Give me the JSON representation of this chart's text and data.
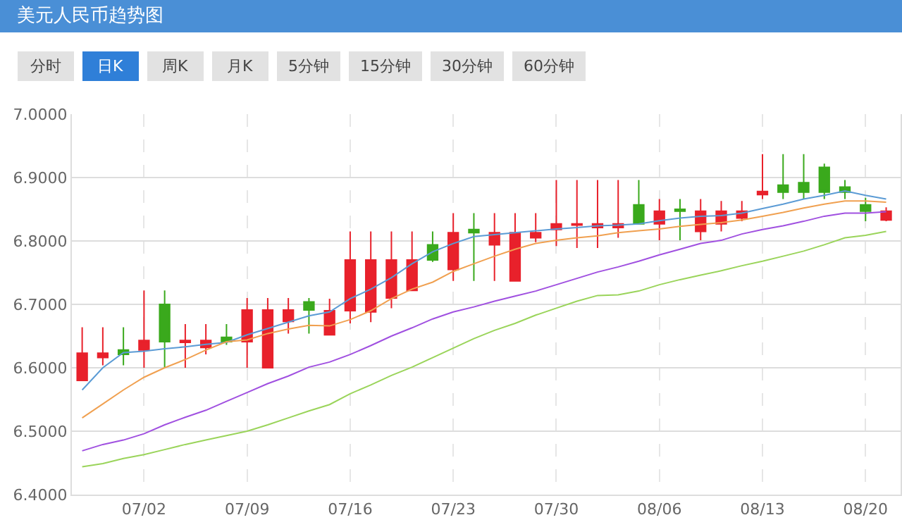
{
  "chart_data": {
    "type": "candlestick",
    "title": "美元人民币趋势图",
    "annotations": [
      "分时",
      "日K",
      "周K",
      "月K",
      "5分钟",
      "15分钟",
      "30分钟",
      "60分钟"
    ],
    "categories": [
      null,
      null,
      null,
      "07/02",
      null,
      null,
      null,
      null,
      "07/09",
      null,
      null,
      null,
      null,
      "07/16",
      null,
      null,
      null,
      null,
      "07/23",
      null,
      null,
      null,
      null,
      "07/30",
      null,
      null,
      null,
      null,
      "08/06",
      null,
      null,
      null,
      null,
      "08/13",
      null,
      null,
      null,
      null,
      "08/20",
      null
    ],
    "colors": [
      "#e8212b",
      "#e8212b",
      "#3aa91c",
      "#e8212b",
      "#3aa91c",
      "#e8212b",
      "#e8212b",
      "#3aa91c",
      "#e8212b",
      "#e8212b",
      "#e8212b",
      "#3aa91c",
      "#e8212b",
      "#e8212b",
      "#e8212b",
      "#e8212b",
      "#e8212b",
      "#3aa91c",
      "#e8212b",
      "#3aa91c",
      "#e8212b",
      "#e8212b",
      "#e8212b",
      "#e8212b",
      "#e8212b",
      "#e8212b",
      "#e8212b",
      "#3aa91c",
      "#e8212b",
      "#3aa91c",
      "#e8212b",
      "#e8212b",
      "#e8212b",
      "#e8212b",
      "#3aa91c",
      "#3aa91c",
      "#3aa91c",
      "#3aa91c",
      "#3aa91c",
      "#e8212b"
    ],
    "ohlc": [
      [
        6.58,
        6.664,
        6.58,
        6.623
      ],
      [
        6.616,
        6.664,
        6.604,
        6.623
      ],
      [
        6.628,
        6.664,
        6.604,
        6.621
      ],
      [
        6.628,
        6.722,
        6.6,
        6.643
      ],
      [
        6.7,
        6.722,
        6.6,
        6.641
      ],
      [
        6.64,
        6.669,
        6.6,
        6.643
      ],
      [
        6.632,
        6.669,
        6.621,
        6.643
      ],
      [
        6.648,
        6.669,
        6.636,
        6.641
      ],
      [
        6.641,
        6.71,
        6.6,
        6.691
      ],
      [
        6.6,
        6.71,
        6.6,
        6.691
      ],
      [
        6.673,
        6.71,
        6.654,
        6.691
      ],
      [
        6.704,
        6.71,
        6.654,
        6.691
      ],
      [
        6.652,
        6.709,
        6.652,
        6.69
      ],
      [
        6.69,
        6.815,
        6.67,
        6.77
      ],
      [
        6.688,
        6.815,
        6.672,
        6.77
      ],
      [
        6.71,
        6.815,
        6.694,
        6.77
      ],
      [
        6.722,
        6.815,
        6.722,
        6.77
      ],
      [
        6.794,
        6.815,
        6.767,
        6.77
      ],
      [
        6.755,
        6.844,
        6.737,
        6.813
      ],
      [
        6.818,
        6.844,
        6.737,
        6.813
      ],
      [
        6.794,
        6.844,
        6.737,
        6.813
      ],
      [
        6.737,
        6.844,
        6.737,
        6.813
      ],
      [
        6.805,
        6.844,
        6.798,
        6.813
      ],
      [
        6.818,
        6.896,
        6.792,
        6.827
      ],
      [
        6.825,
        6.896,
        6.789,
        6.827
      ],
      [
        6.821,
        6.896,
        6.789,
        6.827
      ],
      [
        6.821,
        6.896,
        6.805,
        6.827
      ],
      [
        6.857,
        6.896,
        6.827,
        6.827
      ],
      [
        6.827,
        6.866,
        6.801,
        6.847
      ],
      [
        6.85,
        6.866,
        6.801,
        6.847
      ],
      [
        6.815,
        6.866,
        6.801,
        6.847
      ],
      [
        6.827,
        6.863,
        6.815,
        6.847
      ],
      [
        6.836,
        6.863,
        6.831,
        6.847
      ],
      [
        6.873,
        6.937,
        6.866,
        6.878
      ],
      [
        6.888,
        6.937,
        6.866,
        6.877
      ],
      [
        6.892,
        6.937,
        6.866,
        6.877
      ],
      [
        6.916,
        6.922,
        6.866,
        6.877
      ],
      [
        6.885,
        6.896,
        6.866,
        6.877
      ],
      [
        6.857,
        6.868,
        6.831,
        6.847
      ],
      [
        6.833,
        6.853,
        6.831,
        6.847
      ]
    ],
    "series": [
      {
        "type": "line",
        "color": "#5b9bd5",
        "values": [
          6.565,
          6.6,
          6.624,
          6.626,
          6.63,
          6.633,
          6.637,
          6.64,
          6.652,
          6.662,
          6.672,
          6.682,
          6.688,
          6.709,
          6.724,
          6.742,
          6.764,
          6.783,
          6.796,
          6.807,
          6.81,
          6.813,
          6.816,
          6.819,
          6.821,
          6.824,
          6.825,
          6.827,
          6.832,
          6.836,
          6.839,
          6.84,
          6.844,
          6.851,
          6.858,
          6.866,
          6.872,
          6.879,
          6.872,
          6.866
        ]
      },
      {
        "type": "line",
        "color": "#f0a050",
        "values": [
          6.521,
          6.543,
          6.565,
          6.585,
          6.6,
          6.613,
          6.628,
          6.641,
          6.644,
          6.654,
          6.661,
          6.667,
          6.666,
          6.676,
          6.69,
          6.709,
          6.724,
          6.735,
          6.752,
          6.764,
          6.776,
          6.787,
          6.796,
          6.801,
          6.805,
          6.808,
          6.813,
          6.816,
          6.819,
          6.823,
          6.826,
          6.829,
          6.833,
          6.839,
          6.845,
          6.852,
          6.858,
          6.863,
          6.863,
          6.861
        ]
      },
      {
        "type": "line",
        "color": "#a050e0",
        "values": [
          6.469,
          6.479,
          6.486,
          6.496,
          6.51,
          6.522,
          6.533,
          6.547,
          6.561,
          6.575,
          6.587,
          6.601,
          6.609,
          6.621,
          6.635,
          6.65,
          6.663,
          6.677,
          6.688,
          6.696,
          6.705,
          6.713,
          6.721,
          6.731,
          6.741,
          6.751,
          6.759,
          6.768,
          6.778,
          6.787,
          6.796,
          6.801,
          6.811,
          6.818,
          6.824,
          6.831,
          6.839,
          6.844,
          6.844,
          6.846
        ]
      },
      {
        "type": "line",
        "color": "#9ad45a",
        "values": [
          6.444,
          6.449,
          6.457,
          6.463,
          6.471,
          6.479,
          6.486,
          6.493,
          6.5,
          6.51,
          6.521,
          6.532,
          6.542,
          6.559,
          6.573,
          6.588,
          6.601,
          6.616,
          6.631,
          6.646,
          6.659,
          6.67,
          6.683,
          6.694,
          6.705,
          6.714,
          6.715,
          6.721,
          6.731,
          6.739,
          6.746,
          6.753,
          6.761,
          6.768,
          6.776,
          6.784,
          6.794,
          6.805,
          6.809,
          6.815
        ]
      }
    ],
    "ylim": [
      6.4,
      7.0
    ],
    "yticks": [
      {
        "value": 6.4,
        "label": "6.4000"
      },
      {
        "value": 6.5,
        "label": "6.5000"
      },
      {
        "value": 6.6,
        "label": "6.6000"
      },
      {
        "value": 6.7,
        "label": "6.7000"
      },
      {
        "value": 6.8,
        "label": "6.8000"
      },
      {
        "value": 6.9,
        "label": "6.9000"
      },
      {
        "value": 7.0,
        "label": "7.0000"
      }
    ],
    "grid": true
  }
}
